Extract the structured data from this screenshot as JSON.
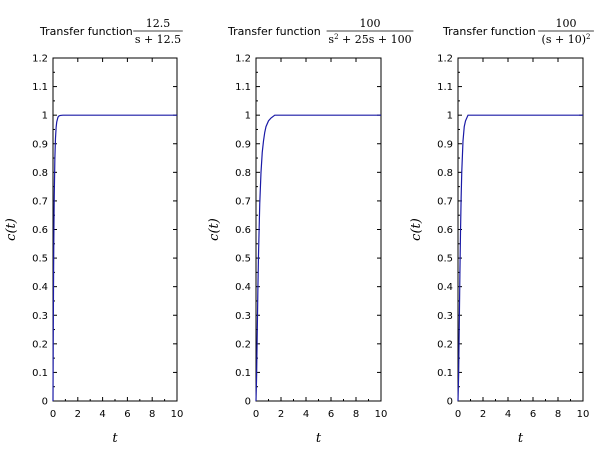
{
  "chart_data": [
    {
      "type": "line",
      "title_text": "Transfer function",
      "title_math": {
        "num": "12.5",
        "den": "s + 12.5"
      },
      "xlabel": "t",
      "ylabel": "c(t)",
      "xlim": [
        0,
        10
      ],
      "ylim": [
        0,
        1.2
      ],
      "xticks": [
        "0",
        "2",
        "4",
        "6",
        "8",
        "10"
      ],
      "yticks": [
        "0",
        "0.1",
        "0.2",
        "0.3",
        "0.4",
        "0.5",
        "0.6",
        "0.7",
        "0.8",
        "0.9",
        "1",
        "1.1",
        "1.2"
      ],
      "grid": false,
      "color": "#1a1aa6",
      "series": [
        {
          "x": [
            0,
            0.02,
            0.04,
            0.06,
            0.08,
            0.1,
            0.15,
            0.2,
            0.25,
            0.3,
            0.4,
            0.5,
            0.6,
            0.8,
            1.0,
            2.0,
            4.0,
            6.0,
            8.0,
            10.0
          ],
          "y": [
            0,
            0.221,
            0.393,
            0.528,
            0.632,
            0.713,
            0.847,
            0.918,
            0.956,
            0.976,
            0.993,
            0.998,
            0.999,
            1.0,
            1.0,
            1.0,
            1.0,
            1.0,
            1.0,
            1.0
          ]
        }
      ]
    },
    {
      "type": "line",
      "title_text": "Transfer function",
      "title_math": {
        "num": "100",
        "den": "s² + 25s + 100"
      },
      "xlabel": "t",
      "ylabel": "c(t)",
      "xlim": [
        0,
        10
      ],
      "ylim": [
        0,
        1.2
      ],
      "xticks": [
        "0",
        "2",
        "4",
        "6",
        "8",
        "10"
      ],
      "yticks": [
        "0",
        "0.1",
        "0.2",
        "0.3",
        "0.4",
        "0.5",
        "0.6",
        "0.7",
        "0.8",
        "0.9",
        "1",
        "1.1",
        "1.2"
      ],
      "grid": false,
      "color": "#1a1aa6",
      "series": [
        {
          "x": [
            0,
            0.05,
            0.1,
            0.15,
            0.2,
            0.3,
            0.4,
            0.5,
            0.6,
            0.7,
            0.8,
            1.0,
            1.2,
            1.5,
            2.0,
            3.0,
            4.0,
            6.0,
            8.0,
            10.0
          ],
          "y": [
            0,
            0.09,
            0.24,
            0.39,
            0.51,
            0.69,
            0.8,
            0.87,
            0.91,
            0.94,
            0.96,
            0.98,
            0.99,
            1.0,
            1.0,
            1.0,
            1.0,
            1.0,
            1.0,
            1.0
          ]
        }
      ]
    },
    {
      "type": "line",
      "title_text": "Transfer function",
      "title_math": {
        "num": "100",
        "den": "(s + 10)²"
      },
      "xlabel": "t",
      "ylabel": "c(t)",
      "xlim": [
        0,
        10
      ],
      "ylim": [
        0,
        1.2
      ],
      "xticks": [
        "0",
        "2",
        "4",
        "6",
        "8",
        "10"
      ],
      "yticks": [
        "0",
        "0.1",
        "0.2",
        "0.3",
        "0.4",
        "0.5",
        "0.6",
        "0.7",
        "0.8",
        "0.9",
        "1",
        "1.1",
        "1.2"
      ],
      "grid": false,
      "color": "#1a1aa6",
      "series": [
        {
          "x": [
            0,
            0.05,
            0.1,
            0.15,
            0.2,
            0.25,
            0.3,
            0.4,
            0.5,
            0.6,
            0.8,
            1.0,
            1.2,
            1.5,
            2.0,
            4.0,
            6.0,
            8.0,
            10.0
          ],
          "y": [
            0,
            0.09,
            0.26,
            0.44,
            0.59,
            0.71,
            0.8,
            0.91,
            0.96,
            0.98,
            1.0,
            1.0,
            1.0,
            1.0,
            1.0,
            1.0,
            1.0,
            1.0,
            1.0
          ]
        }
      ]
    }
  ]
}
